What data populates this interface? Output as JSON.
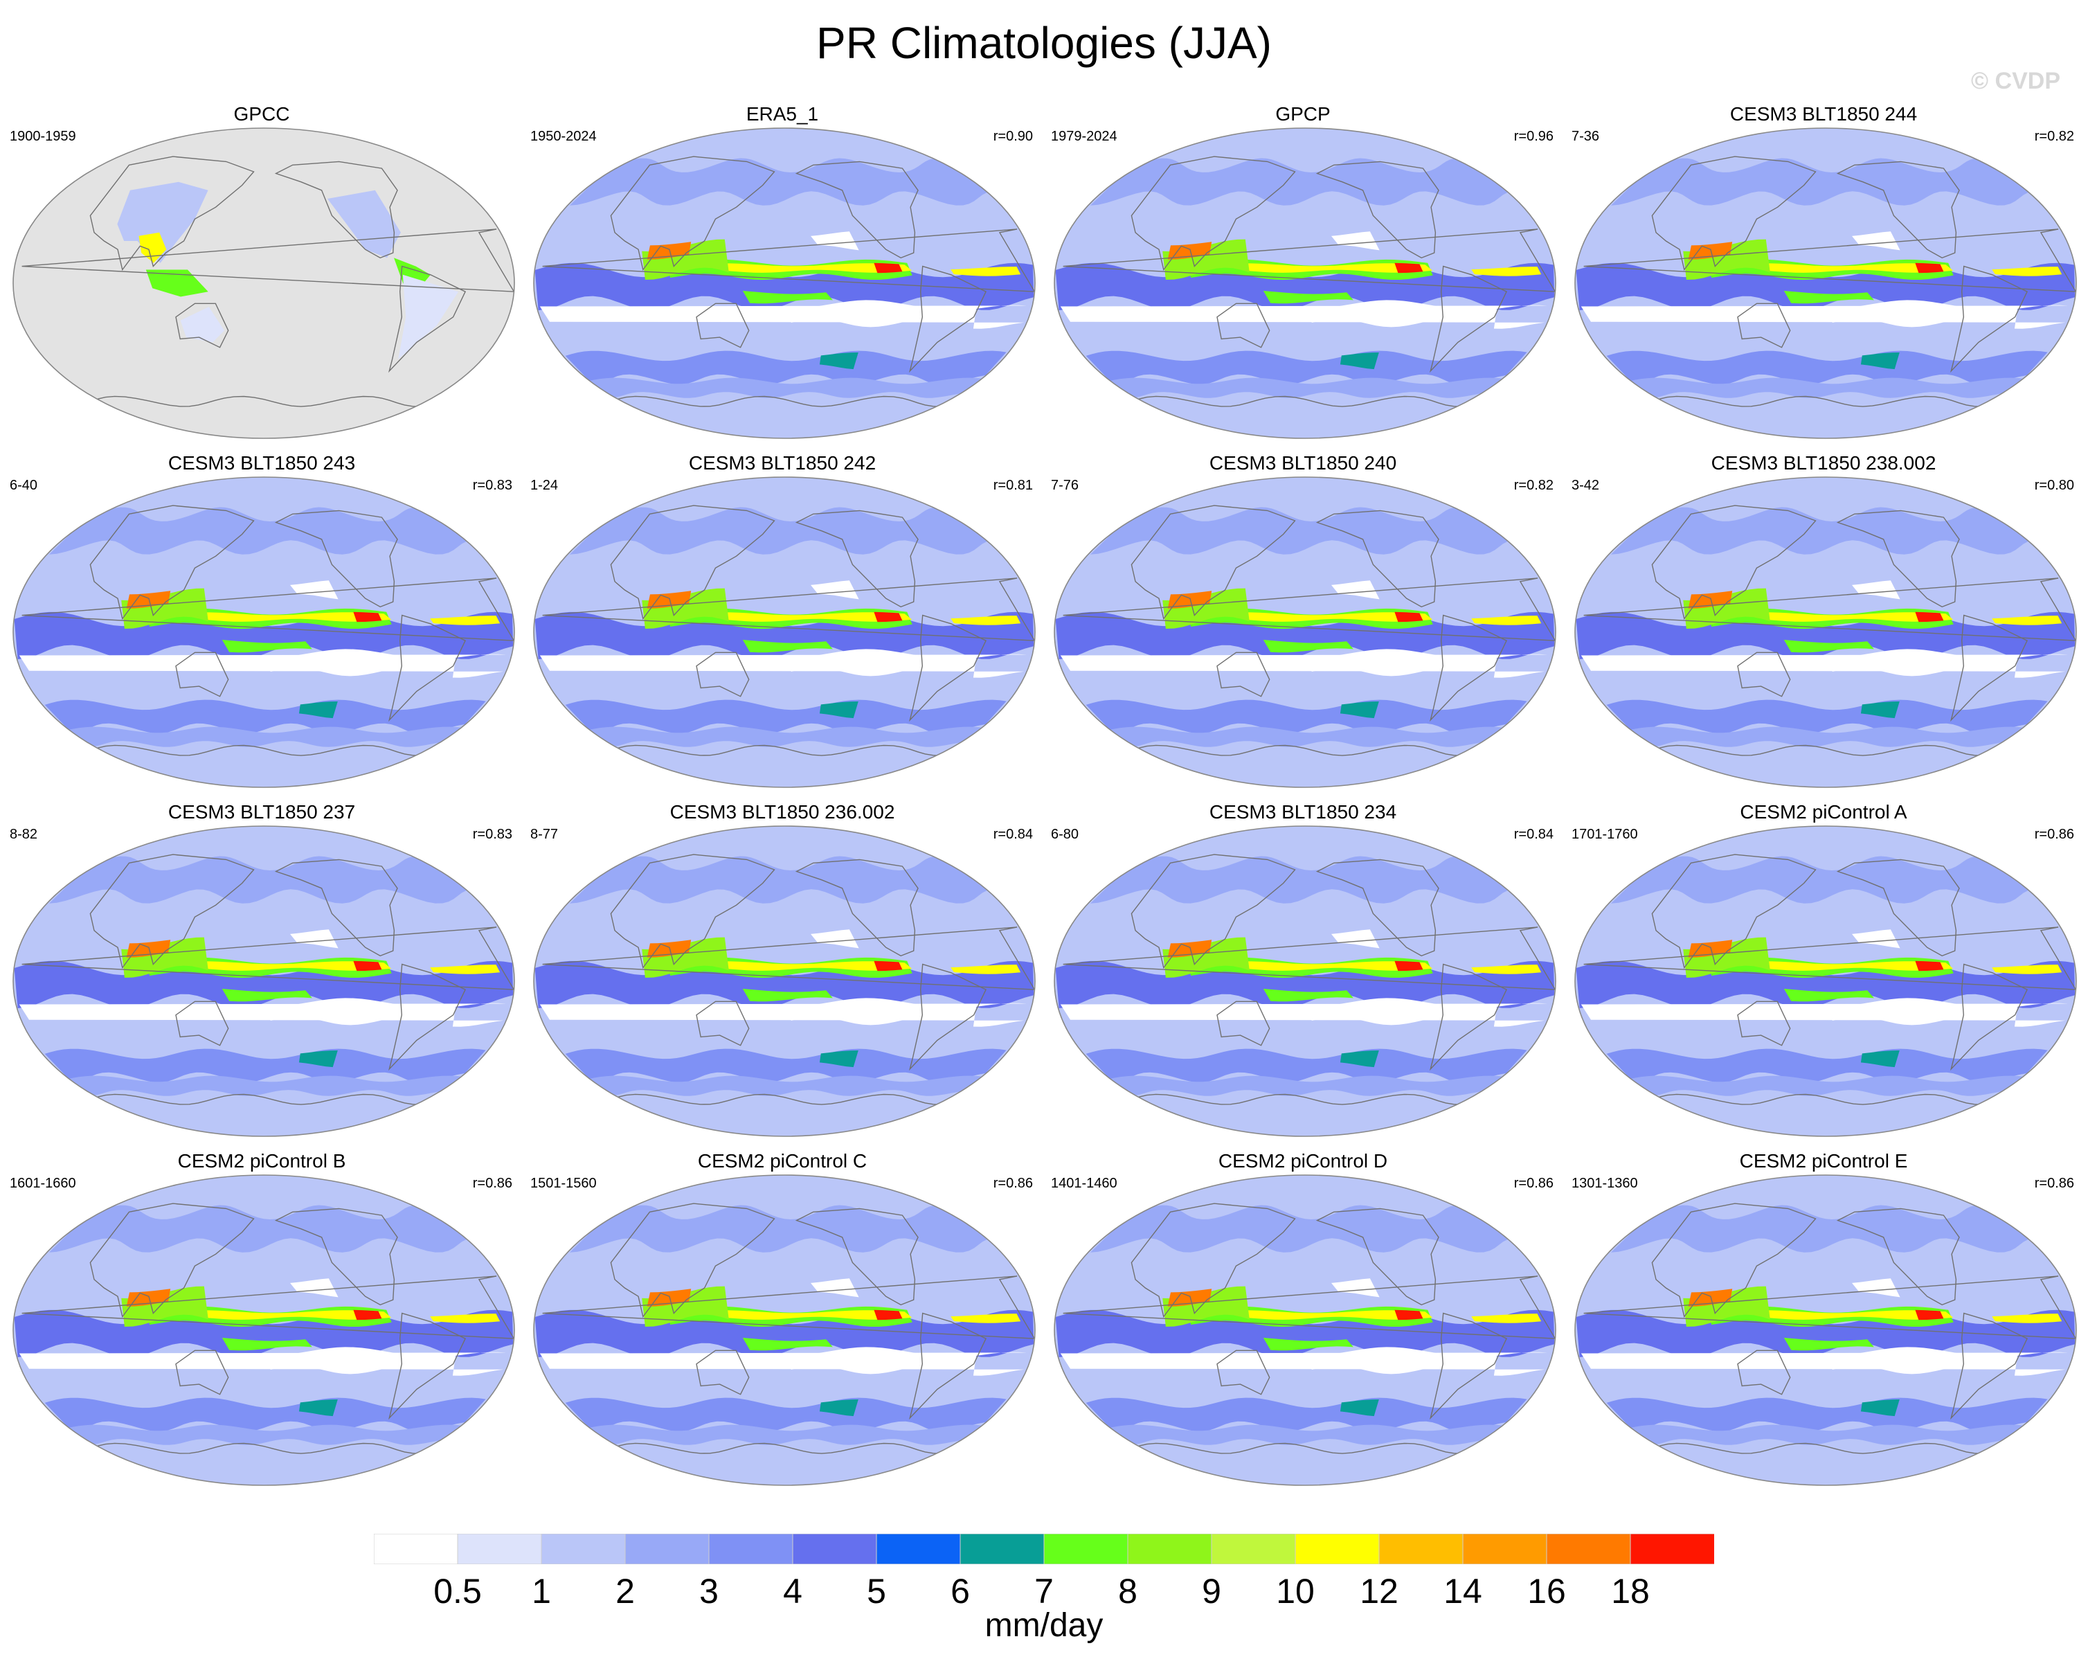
{
  "title": "PR Climatologies (JJA)",
  "watermark": "© CVDP",
  "chart_data": {
    "type": "heatmap",
    "projection": "Robinson (Pacific-centered)",
    "season": "JJA",
    "variable": "precipitation",
    "units": "mm/day",
    "levels": [
      0.5,
      1,
      2,
      3,
      4,
      5,
      6,
      7,
      8,
      9,
      10,
      12,
      14,
      16,
      18
    ],
    "colors": [
      "#ffffff",
      "#dde3fb",
      "#bac6f8",
      "#98a9f7",
      "#7f91f5",
      "#6570ee",
      "#0b63f6",
      "#089e96",
      "#66ff1a",
      "#8ff51a",
      "#c0f73c",
      "#ffff00",
      "#ffbe00",
      "#ff9b00",
      "#ff7a00",
      "#ff1600"
    ],
    "panels": [
      {
        "title": "GPCC",
        "period": "1900-1959",
        "r": ""
      },
      {
        "title": "ERA5_1",
        "period": "1950-2024",
        "r": "r=0.90"
      },
      {
        "title": "GPCP",
        "period": "1979-2024",
        "r": "r=0.96"
      },
      {
        "title": "CESM3 BLT1850 244",
        "period": "7-36",
        "r": "r=0.82"
      },
      {
        "title": "CESM3 BLT1850 243",
        "period": "6-40",
        "r": "r=0.83"
      },
      {
        "title": "CESM3 BLT1850 242",
        "period": "1-24",
        "r": "r=0.81"
      },
      {
        "title": "CESM3 BLT1850 240",
        "period": "7-76",
        "r": "r=0.82"
      },
      {
        "title": "CESM3 BLT1850 238.002",
        "period": "3-42",
        "r": "r=0.80"
      },
      {
        "title": "CESM3 BLT1850 237",
        "period": "8-82",
        "r": "r=0.83"
      },
      {
        "title": "CESM3 BLT1850 236.002",
        "period": "8-77",
        "r": "r=0.84"
      },
      {
        "title": "CESM3 BLT1850 234",
        "period": "6-80",
        "r": "r=0.84"
      },
      {
        "title": "CESM2 piControl A",
        "period": "1701-1760",
        "r": "r=0.86"
      },
      {
        "title": "CESM2 piControl B",
        "period": "1601-1660",
        "r": "r=0.86"
      },
      {
        "title": "CESM2 piControl C",
        "period": "1501-1560",
        "r": "r=0.86"
      },
      {
        "title": "CESM2 piControl D",
        "period": "1401-1460",
        "r": "r=0.86"
      },
      {
        "title": "CESM2 piControl E",
        "period": "1301-1360",
        "r": "r=0.86"
      }
    ],
    "colorbar_label": "mm/day",
    "land_only_panel": "GPCC"
  }
}
